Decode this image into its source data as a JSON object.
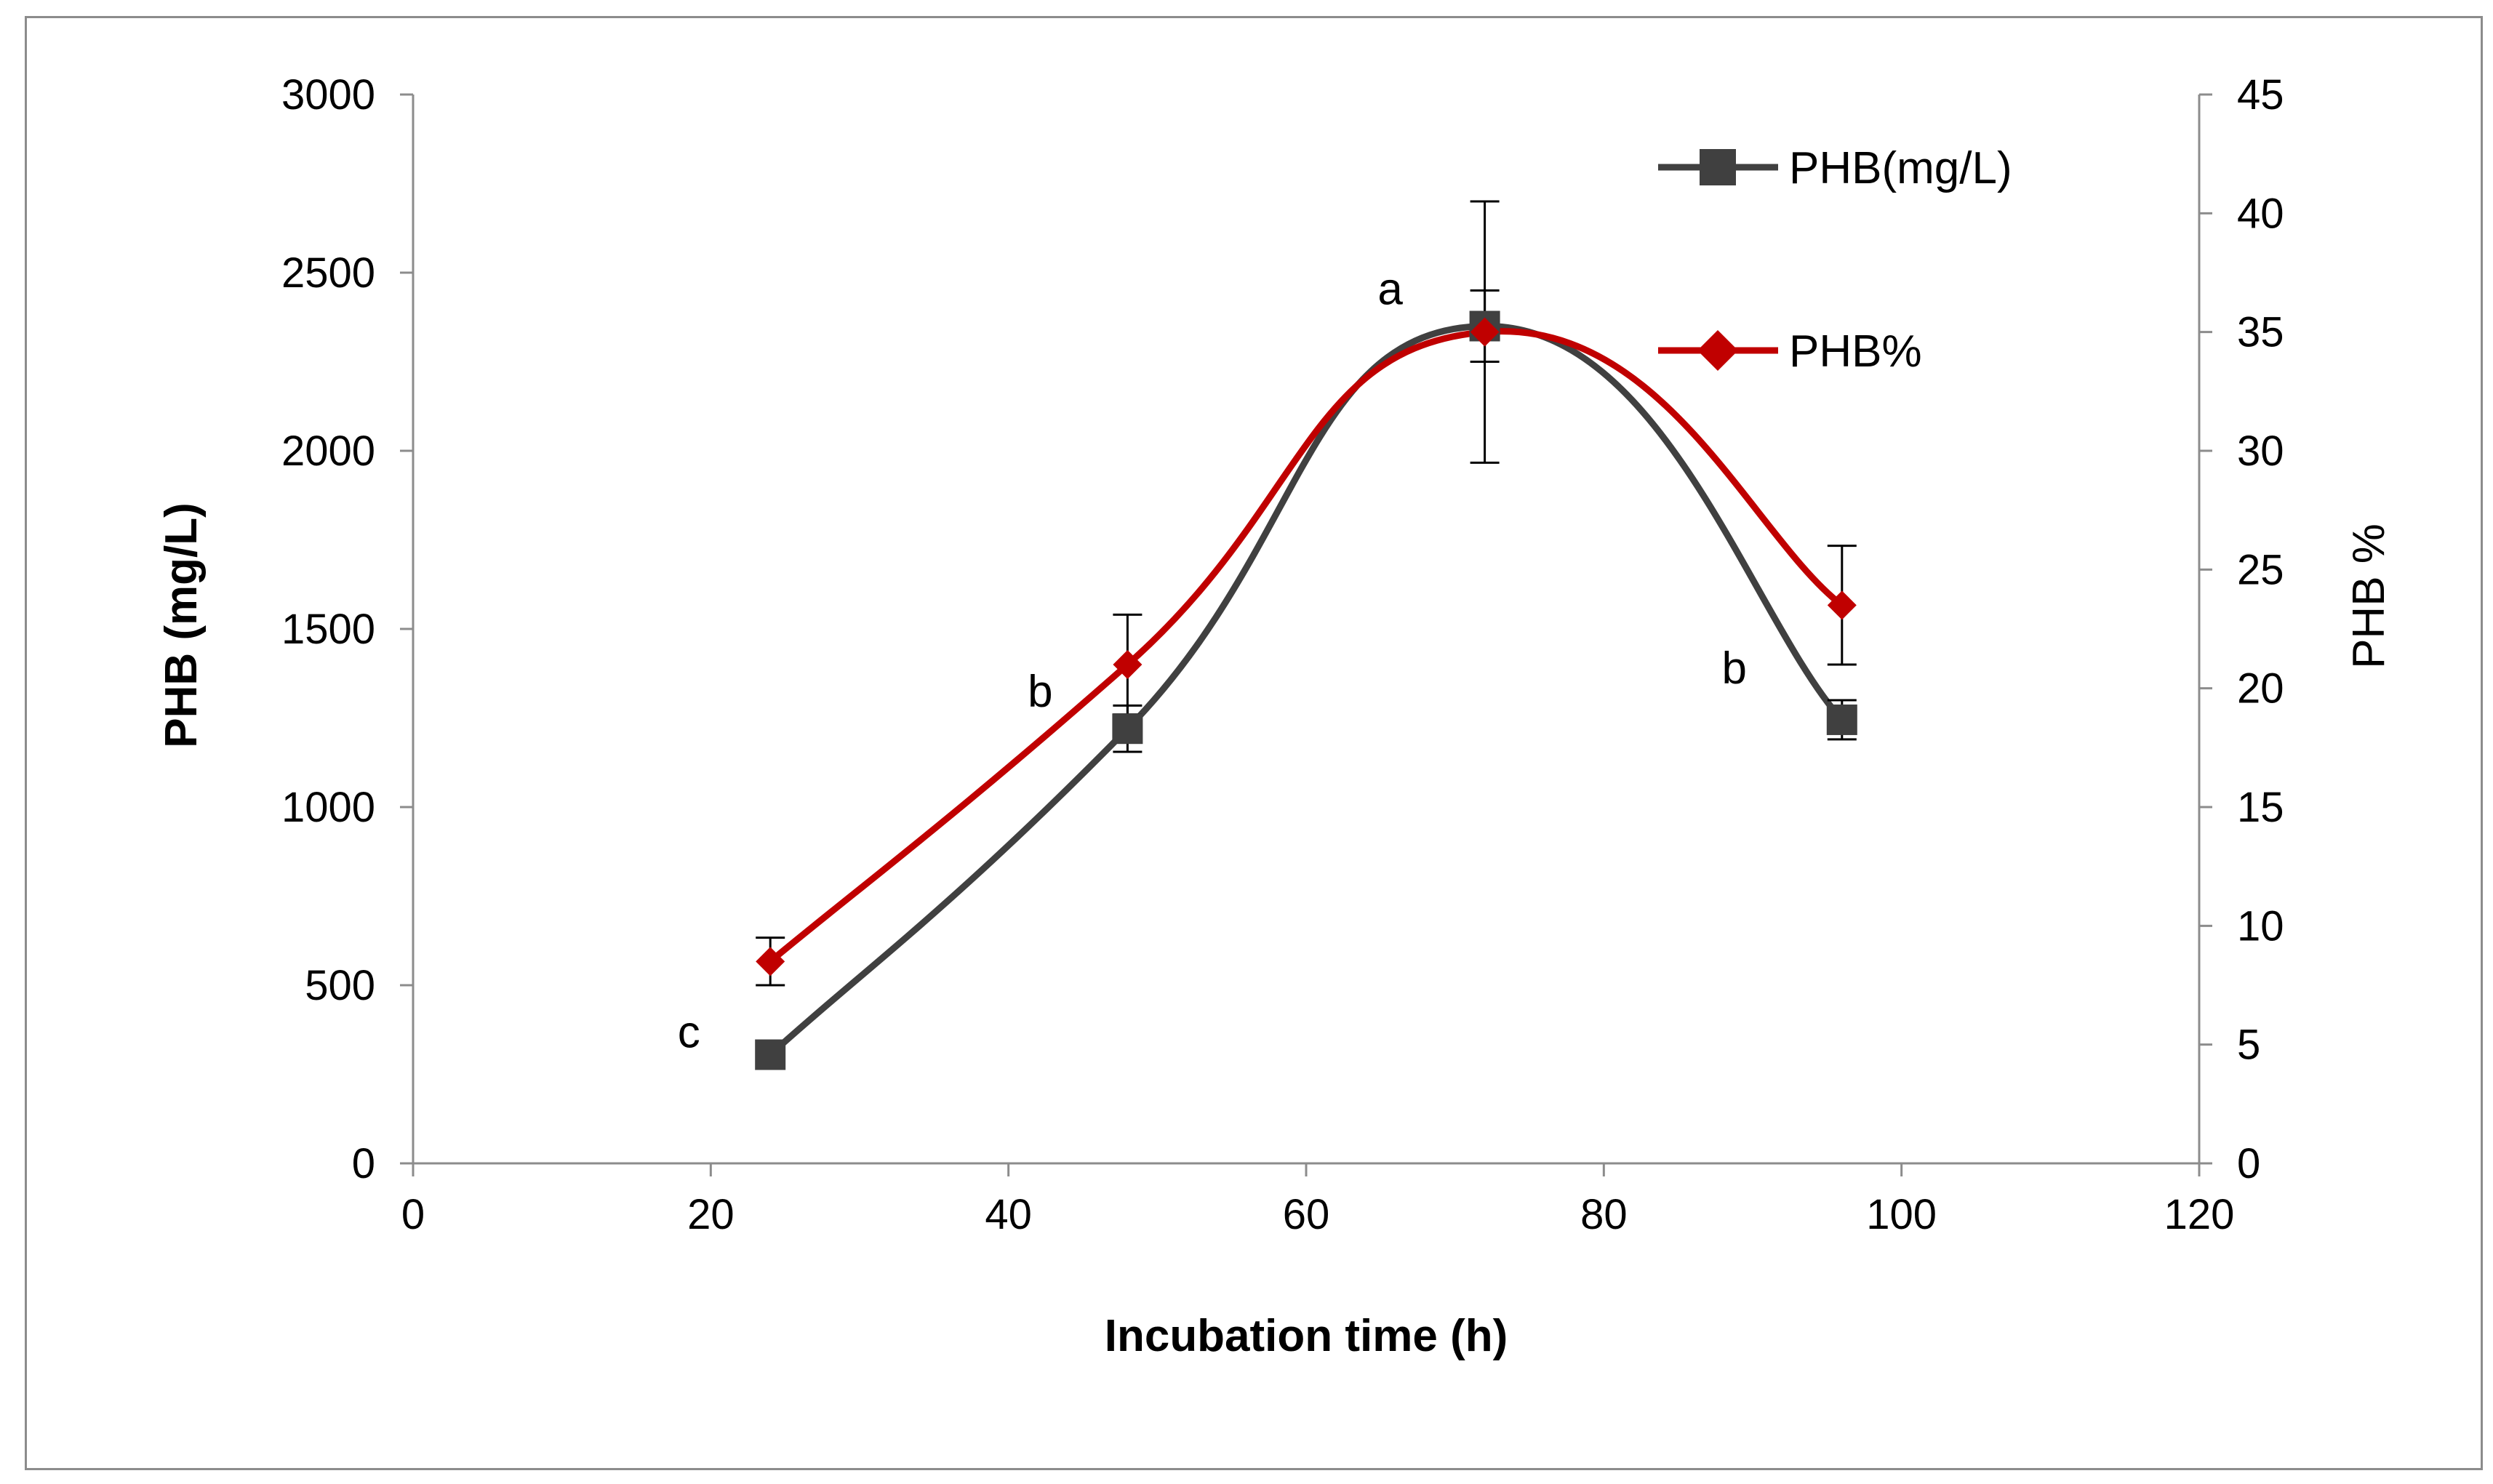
{
  "chart_data": {
    "type": "line",
    "title": "",
    "xlabel": "Incubation time (h)",
    "ylabel": "PHB (mg/L)",
    "y2label": "PHB %",
    "xlim": [
      0,
      120
    ],
    "ylim": [
      0,
      3000
    ],
    "y2lim": [
      0,
      45
    ],
    "xticks": [
      0,
      20,
      40,
      60,
      80,
      100,
      120
    ],
    "yticks": [
      0,
      500,
      1000,
      1500,
      2000,
      2500,
      3000
    ],
    "y2ticks": [
      0,
      5,
      10,
      15,
      20,
      25,
      30,
      35,
      40,
      45
    ],
    "grid": false,
    "legend_position": "top-right",
    "x": [
      24,
      48,
      72,
      96
    ],
    "series": [
      {
        "name": "PHB(mg/L)",
        "axis": "left",
        "marker": "square",
        "color": "#404040",
        "values": [
          305,
          1220,
          2350,
          1245
        ],
        "errors": [
          15,
          65,
          100,
          55
        ]
      },
      {
        "name": "PHB%",
        "axis": "right",
        "marker": "diamond",
        "color": "#c00000",
        "values": [
          8.5,
          21,
          35,
          23.5
        ],
        "errors": [
          1,
          2.1,
          5.5,
          2.5
        ]
      }
    ],
    "annotations": [
      {
        "text": "c",
        "x": 24
      },
      {
        "text": "b",
        "x": 48
      },
      {
        "text": "a",
        "x": 72
      },
      {
        "text": "b",
        "x": 96
      }
    ]
  }
}
